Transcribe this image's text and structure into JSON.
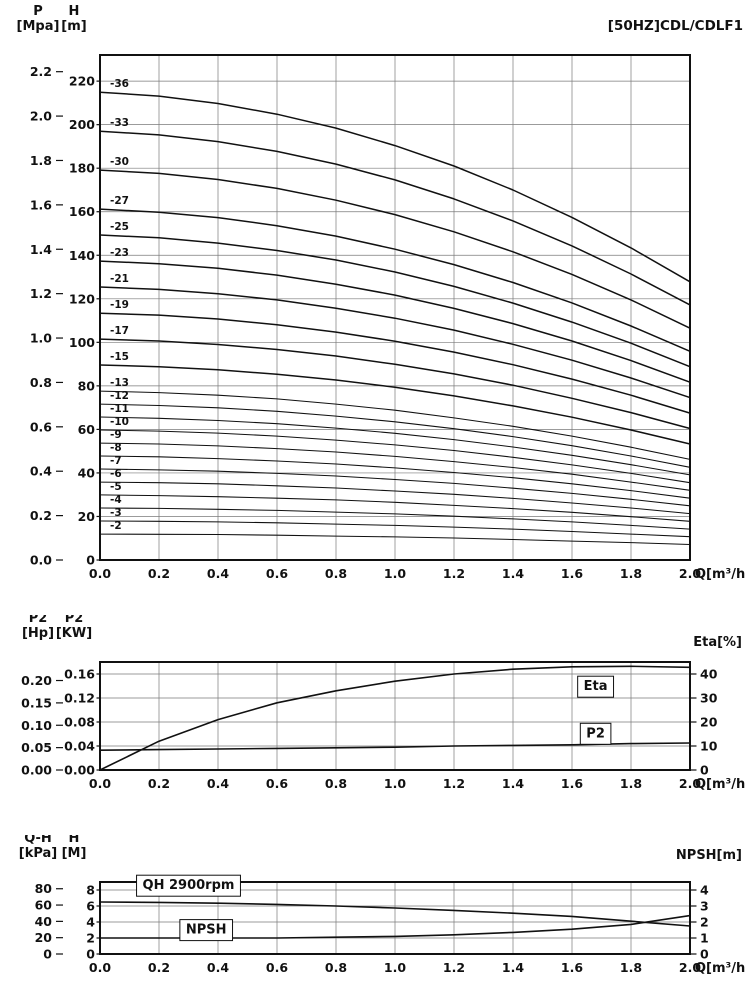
{
  "page": {
    "title": "[50HZ]CDL/CDLF1"
  },
  "x_tick_labels": [
    "0.0",
    "0.2",
    "0.4",
    "0.6",
    "0.8",
    "1.0",
    "1.2",
    "1.4",
    "1.6",
    "1.8",
    "2.0"
  ],
  "colors": {
    "curve": "#111111",
    "grid": "#7a7a7a",
    "frame": "#111111"
  },
  "chart_data": [
    {
      "id": "hq",
      "type": "line",
      "title": "[50HZ]CDL/CDLF1",
      "xlabel": "Q[m³/h]",
      "x": [
        0,
        0.2,
        0.4,
        0.6,
        0.8,
        1.0,
        1.2,
        1.4,
        1.6,
        1.8,
        2.0
      ],
      "ylim": [
        0,
        232
      ],
      "axes": {
        "left1": {
          "name": "P",
          "unit": "[Mpa]",
          "to_primary": 101.97,
          "tick_labels": [
            "2.2",
            "2.0",
            "1.8",
            "1.6",
            "1.4",
            "1.2",
            "1.0",
            "0.8",
            "0.6",
            "0.4",
            "0.2",
            "0.0"
          ],
          "tick_values": [
            2.2,
            2.0,
            1.8,
            1.6,
            1.4,
            1.2,
            1.0,
            0.8,
            0.6,
            0.4,
            0.2,
            0.0
          ]
        },
        "left2": {
          "name": "H",
          "unit": "[m]",
          "to_primary": 1,
          "tick_labels": [
            "220",
            "200",
            "180",
            "160",
            "140",
            "120",
            "100",
            "80",
            "60",
            "40",
            "20",
            "0"
          ],
          "tick_values": [
            220,
            200,
            180,
            160,
            140,
            120,
            100,
            80,
            60,
            40,
            20,
            0
          ]
        }
      },
      "series": [
        {
          "name": "-36",
          "values": [
            214.9,
            213.1,
            209.7,
            204.8,
            198.4,
            190.4,
            181.0,
            170.0,
            157.4,
            143.4,
            127.8
          ]
        },
        {
          "name": "-33",
          "values": [
            197.0,
            195.3,
            192.2,
            187.7,
            181.9,
            174.6,
            165.9,
            155.8,
            144.3,
            131.4,
            117.2
          ]
        },
        {
          "name": "-30",
          "values": [
            179.1,
            177.6,
            174.8,
            170.7,
            165.3,
            158.7,
            150.8,
            141.6,
            131.2,
            119.5,
            106.5
          ]
        },
        {
          "name": "-27",
          "values": [
            161.2,
            159.8,
            157.3,
            153.6,
            148.8,
            142.8,
            135.7,
            127.5,
            118.1,
            107.5,
            95.9
          ]
        },
        {
          "name": "-25",
          "values": [
            149.3,
            148.0,
            145.6,
            142.2,
            137.8,
            132.3,
            125.7,
            118.0,
            109.3,
            99.6,
            88.8
          ]
        },
        {
          "name": "-23",
          "values": [
            137.3,
            136.1,
            134.0,
            130.9,
            126.7,
            121.7,
            115.6,
            108.6,
            100.6,
            91.6,
            81.7
          ]
        },
        {
          "name": "-21",
          "values": [
            125.4,
            124.3,
            122.3,
            119.5,
            115.7,
            111.1,
            105.6,
            99.1,
            91.8,
            83.6,
            74.6
          ]
        },
        {
          "name": "-19",
          "values": [
            113.4,
            112.5,
            110.7,
            108.1,
            104.7,
            100.5,
            95.5,
            89.7,
            83.1,
            75.7,
            67.5
          ]
        },
        {
          "name": "-17",
          "values": [
            101.5,
            100.6,
            99.0,
            96.7,
            93.7,
            89.9,
            85.5,
            80.3,
            74.3,
            67.7,
            60.4
          ]
        },
        {
          "name": "-15",
          "values": [
            89.6,
            88.8,
            87.4,
            85.3,
            82.7,
            79.4,
            75.4,
            70.8,
            65.6,
            59.7,
            53.3
          ]
        },
        {
          "name": "-13",
          "values": [
            77.6,
            76.9,
            75.7,
            74.0,
            71.6,
            68.8,
            65.3,
            61.4,
            56.9,
            51.8,
            46.2
          ]
        },
        {
          "name": "-12",
          "values": [
            71.6,
            71.0,
            69.9,
            68.3,
            66.1,
            63.5,
            60.3,
            56.7,
            52.5,
            47.8,
            42.6
          ]
        },
        {
          "name": "-11",
          "values": [
            65.7,
            65.1,
            64.1,
            62.6,
            60.6,
            58.2,
            55.3,
            51.9,
            48.1,
            43.8,
            39.1
          ]
        },
        {
          "name": "-10",
          "values": [
            59.7,
            59.2,
            58.3,
            56.9,
            55.1,
            52.9,
            50.3,
            47.2,
            43.7,
            39.8,
            35.5
          ]
        },
        {
          "name": "-9",
          "values": [
            53.7,
            53.3,
            52.4,
            51.2,
            49.6,
            47.6,
            45.2,
            42.5,
            39.4,
            35.8,
            32.0
          ]
        },
        {
          "name": "-8",
          "values": [
            47.8,
            47.4,
            46.6,
            45.5,
            44.1,
            42.3,
            40.2,
            37.8,
            35.0,
            31.9,
            28.4
          ]
        },
        {
          "name": "-7",
          "values": [
            41.8,
            41.4,
            40.8,
            39.8,
            38.6,
            37.0,
            35.2,
            33.0,
            30.6,
            27.9,
            24.9
          ]
        },
        {
          "name": "-6",
          "values": [
            35.8,
            35.5,
            35.0,
            34.1,
            33.1,
            31.7,
            30.2,
            28.3,
            26.2,
            23.9,
            21.3
          ]
        },
        {
          "name": "-5",
          "values": [
            29.9,
            29.6,
            29.1,
            28.4,
            27.6,
            26.5,
            25.1,
            23.6,
            21.9,
            19.9,
            17.8
          ]
        },
        {
          "name": "-4",
          "values": [
            23.9,
            23.7,
            23.3,
            22.8,
            22.0,
            21.2,
            20.1,
            18.9,
            17.5,
            15.9,
            14.2
          ]
        },
        {
          "name": "-3",
          "values": [
            17.9,
            17.8,
            17.5,
            17.1,
            16.5,
            15.9,
            15.1,
            14.2,
            13.1,
            11.9,
            10.7
          ]
        },
        {
          "name": "-2",
          "values": [
            11.9,
            11.8,
            11.7,
            11.4,
            11.0,
            10.6,
            10.1,
            9.4,
            8.7,
            8.0,
            7.1
          ]
        }
      ],
      "annotations": []
    },
    {
      "id": "power-eff",
      "type": "line",
      "xlabel": "Q[m³/h]",
      "x": [
        0,
        0.2,
        0.4,
        0.6,
        0.8,
        1.0,
        1.2,
        1.4,
        1.6,
        1.8,
        2.0
      ],
      "ylim": [
        0,
        0.18
      ],
      "axes": {
        "left1": {
          "name": "P2",
          "unit": "[Hp]",
          "to_primary": 0.7457,
          "tick_labels": [
            "0.20",
            "0.15",
            "0.10",
            "0.05",
            "0.00"
          ],
          "tick_values": [
            0.2,
            0.15,
            0.1,
            0.05,
            0.0
          ]
        },
        "left2": {
          "name": "P2",
          "unit": "[KW]",
          "to_primary": 1,
          "tick_labels": [
            "0.16",
            "0.12",
            "0.08",
            "0.04",
            "0.00"
          ],
          "tick_values": [
            0.16,
            0.12,
            0.08,
            0.04,
            0.0
          ]
        },
        "right": {
          "name": "Eta[%]",
          "to_primary": 0.004,
          "tick_labels": [
            "40",
            "30",
            "20",
            "10",
            "0"
          ],
          "tick_values": [
            40,
            30,
            20,
            10,
            0
          ]
        }
      },
      "series": [
        {
          "name": "Eta",
          "axis": "right",
          "values": [
            0,
            12,
            21,
            28,
            33,
            37,
            40,
            42,
            43,
            43.2,
            42.8
          ]
        },
        {
          "name": "P2",
          "values": [
            0.033,
            0.034,
            0.035,
            0.036,
            0.037,
            0.038,
            0.04,
            0.041,
            0.042,
            0.044,
            0.045
          ]
        }
      ],
      "annotations": [
        {
          "text": "Eta",
          "x": 1.68,
          "y": 0.133,
          "boxed": true
        },
        {
          "text": "P2",
          "x": 1.68,
          "y": 0.0545,
          "boxed": true
        }
      ]
    },
    {
      "id": "qh-npsh",
      "type": "line",
      "xlabel": "Q[m³/h]",
      "x": [
        0,
        0.2,
        0.4,
        0.6,
        0.8,
        1.0,
        1.2,
        1.4,
        1.6,
        1.8,
        2.0
      ],
      "ylim": [
        0,
        9
      ],
      "axes": {
        "left1": {
          "name": "Q-H",
          "unit": "[kPa]",
          "to_primary": 0.10197,
          "tick_labels": [
            "80",
            "60",
            "40",
            "20",
            "0"
          ],
          "tick_values": [
            80,
            60,
            40,
            20,
            0
          ]
        },
        "left2": {
          "name": "H",
          "unit": "[M]",
          "to_primary": 1,
          "tick_labels": [
            "8",
            "6",
            "4",
            "2",
            "0"
          ],
          "tick_values": [
            8,
            6,
            4,
            2,
            0
          ]
        },
        "right": {
          "name": "NPSH[m]",
          "to_primary": 2,
          "tick_labels": [
            "4",
            "3",
            "2",
            "1",
            "0"
          ],
          "tick_values": [
            4,
            3,
            2,
            1,
            0
          ]
        }
      },
      "series": [
        {
          "name": "QH",
          "values": [
            6.5,
            6.45,
            6.35,
            6.2,
            6.0,
            5.75,
            5.45,
            5.1,
            4.7,
            4.1,
            3.5
          ]
        },
        {
          "name": "NPSH",
          "axis": "right",
          "values": [
            1.0,
            1.0,
            1.0,
            1.0,
            1.05,
            1.1,
            1.2,
            1.35,
            1.55,
            1.85,
            2.4
          ]
        }
      ],
      "annotations": [
        {
          "text": "QH 2900rpm",
          "x": 0.3,
          "y": 8.1,
          "boxed": true
        },
        {
          "text": "NPSH",
          "x": 0.36,
          "y": 2.55,
          "boxed": true
        }
      ]
    }
  ]
}
